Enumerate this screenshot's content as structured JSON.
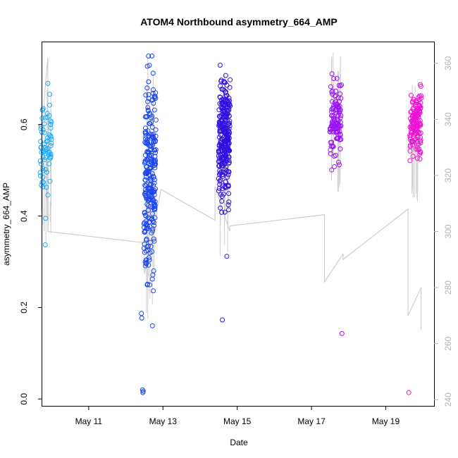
{
  "chart_data": {
    "type": "scatter",
    "title": "ATOM4 Northbound asymmetry_664_AMP",
    "xlabel": "Date",
    "ylabel": "asymmetry_664_AMP",
    "x_ticks": [
      "May 11",
      "May 13",
      "May 15",
      "May 17",
      "May 19"
    ],
    "x_tick_values": [
      11,
      13,
      15,
      17,
      19
    ],
    "xlim": [
      9.75,
      20.3
    ],
    "ylim": [
      -0.015,
      0.78
    ],
    "y_ticks": [
      0.0,
      0.2,
      0.4,
      0.6
    ],
    "y_tick_labels": [
      "0.0",
      "0.2",
      "0.4",
      "0.6"
    ],
    "y2_ticks": [
      240,
      260,
      280,
      300,
      320,
      340,
      360
    ],
    "y2_lim": [
      237.8,
      367.5
    ],
    "y2_color": "#b3b3b3",
    "point_color_gradient": [
      "#00bfff",
      "#0040ff",
      "#3010e0",
      "#9000ff",
      "#ff00cc"
    ],
    "grid": false,
    "legend": "none",
    "series": [
      {
        "type": "scatter",
        "clusters": [
          {
            "x": 9.85,
            "mean": 0.56,
            "sd": 0.055,
            "min": 0.34,
            "max": 0.69,
            "n": 70,
            "color": "#1aaaf5"
          },
          {
            "x": 12.65,
            "mean": 0.47,
            "sd": 0.1,
            "min": 0.16,
            "max": 0.75,
            "n": 260,
            "color": "#1a45f0"
          },
          {
            "x": 14.65,
            "mean": 0.57,
            "sd": 0.07,
            "min": 0.3,
            "max": 0.73,
            "n": 290,
            "color": "#3010e0"
          },
          {
            "x": 17.65,
            "mean": 0.61,
            "sd": 0.045,
            "min": 0.45,
            "max": 0.76,
            "n": 120,
            "color": "#9a12f5"
          },
          {
            "x": 19.8,
            "mean": 0.6,
            "sd": 0.04,
            "min": 0.43,
            "max": 0.69,
            "n": 140,
            "color": "#ee10d2"
          }
        ],
        "outliers": [
          {
            "x": 9.83,
            "y": 0.337
          },
          {
            "x": 9.84,
            "y": 0.395
          },
          {
            "x": 9.9,
            "y": 0.446
          },
          {
            "x": 12.42,
            "y": 0.187
          },
          {
            "x": 12.43,
            "y": 0.177
          },
          {
            "x": 12.45,
            "y": 0.02
          },
          {
            "x": 12.46,
            "y": 0.014
          },
          {
            "x": 12.47,
            "y": 0.017
          },
          {
            "x": 12.75,
            "y": 0.28
          },
          {
            "x": 14.6,
            "y": 0.173
          },
          {
            "x": 14.72,
            "y": 0.312
          },
          {
            "x": 17.82,
            "y": 0.143
          },
          {
            "x": 19.62,
            "y": 0.014
          }
        ]
      },
      {
        "type": "line",
        "axis": "right",
        "color": "#c8c8c8",
        "x": [
          9.8,
          9.8,
          9.9,
          9.9,
          12.5,
          12.5,
          12.95,
          14.4,
          14.4,
          14.8,
          14.8,
          17.35,
          17.35,
          17.85,
          17.85,
          19.6,
          19.6,
          19.95,
          19.95
        ],
        "y": [
          300,
          347,
          362,
          300,
          296,
          285,
          315,
          304,
          316,
          300,
          302,
          306,
          282,
          292,
          290,
          308,
          270,
          280,
          265
        ]
      }
    ]
  }
}
